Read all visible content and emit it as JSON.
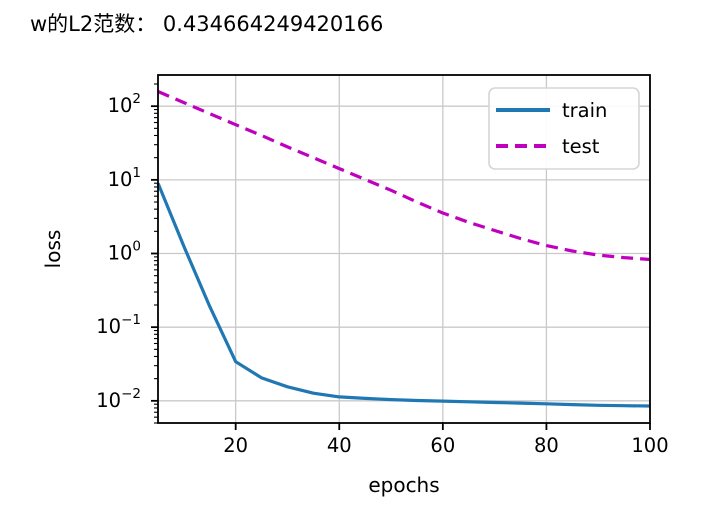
{
  "title": "w的L2范数： 0.434664249420166",
  "colors": {
    "background": "#ffffff",
    "grid": "#c9c9c9",
    "spine": "#000000",
    "text": "#000000",
    "legend_border": "#d5d5d5",
    "legend_background": "#ffffff",
    "train": "#1f77b4",
    "test": "#bf00bf"
  },
  "chart_data": {
    "type": "line",
    "x": [
      5,
      10,
      15,
      20,
      25,
      30,
      35,
      40,
      45,
      50,
      55,
      60,
      65,
      70,
      75,
      80,
      85,
      90,
      95,
      100
    ],
    "series": [
      {
        "name": "train",
        "color": "#1f77b4",
        "linestyle": "solid",
        "values": [
          9.0,
          1.25,
          0.19,
          0.034,
          0.0205,
          0.0155,
          0.0127,
          0.0113,
          0.0108,
          0.0104,
          0.0101,
          0.0099,
          0.0097,
          0.0095,
          0.0093,
          0.0091,
          0.0089,
          0.0087,
          0.0086,
          0.0085
        ]
      },
      {
        "name": "test",
        "color": "#bf00bf",
        "linestyle": "dashed",
        "values": [
          158,
          112,
          79,
          56,
          40,
          28,
          20,
          14.2,
          10.1,
          7.2,
          5.0,
          3.55,
          2.65,
          2.05,
          1.6,
          1.28,
          1.08,
          0.95,
          0.88,
          0.83
        ]
      }
    ],
    "xlabel": "epochs",
    "ylabel": "loss",
    "xscale": "linear",
    "yscale": "log",
    "xlim": [
      5,
      100
    ],
    "ylim": [
      0.005,
      265
    ],
    "xticks": [
      20,
      40,
      60,
      80,
      100
    ],
    "ytick_exponents": [
      2,
      1,
      0,
      -1,
      -2
    ],
    "grid": true,
    "legend": {
      "position": "upper right",
      "entries": [
        "train",
        "test"
      ]
    }
  }
}
